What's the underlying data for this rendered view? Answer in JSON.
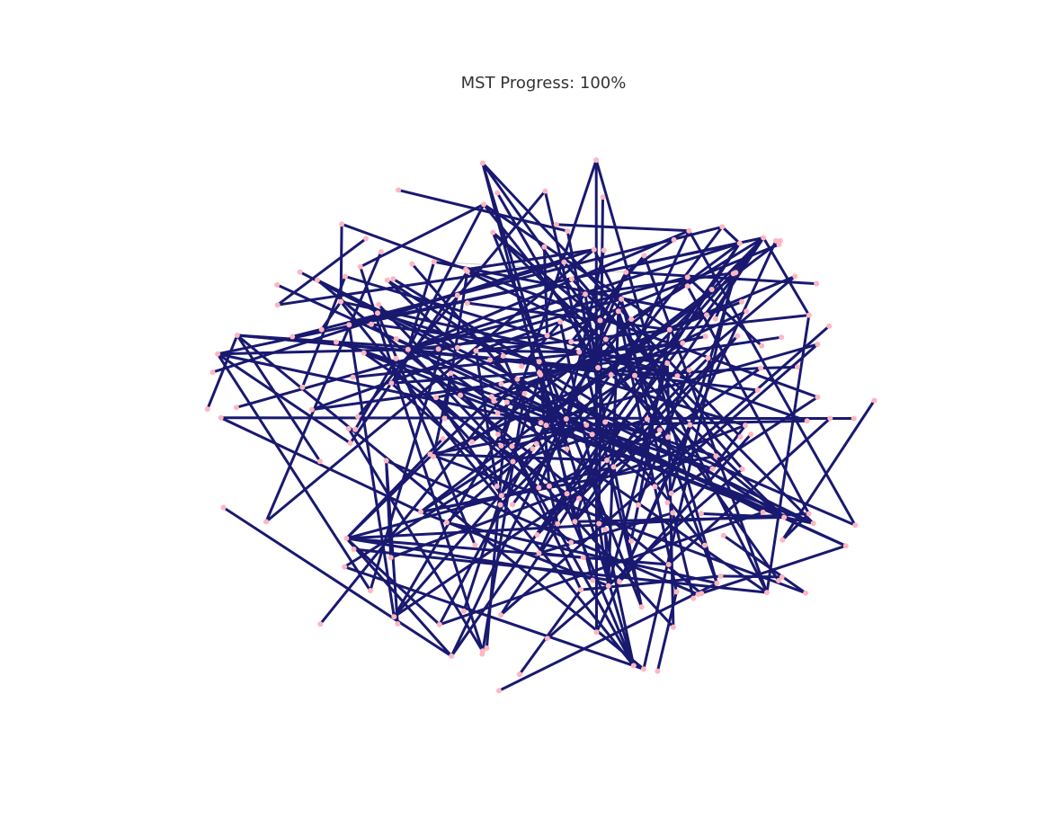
{
  "title": "MST Progress: 100%",
  "progress_percent": 100,
  "colors": {
    "background": "#ffffff",
    "mst_edge": "#191970",
    "non_mst_edge": "#cccccc",
    "node": "#ffb6c1",
    "title_text": "#333333"
  }
}
